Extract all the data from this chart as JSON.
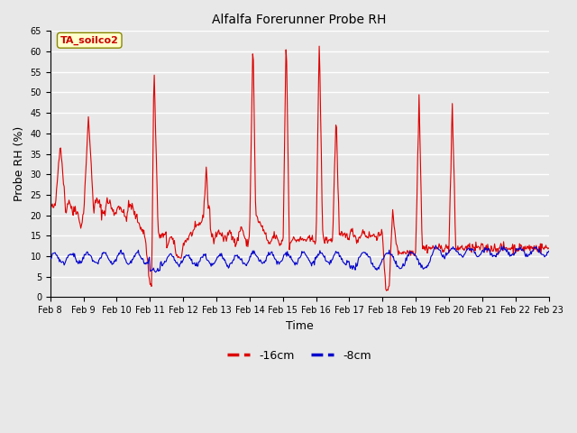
{
  "title": "Alfalfa Forerunner Probe RH",
  "xlabel": "Time",
  "ylabel": "Probe RH (%)",
  "ylim": [
    0,
    65
  ],
  "yticks": [
    0,
    5,
    10,
    15,
    20,
    25,
    30,
    35,
    40,
    45,
    50,
    55,
    60,
    65
  ],
  "date_labels": [
    "Feb 8",
    "Feb 9",
    "Feb 10",
    "Feb 11",
    "Feb 12",
    "Feb 13",
    "Feb 14",
    "Feb 15",
    "Feb 16",
    "Feb 17",
    "Feb 18",
    "Feb 19",
    "Feb 20",
    "Feb 21",
    "Feb 22",
    "Feb 23"
  ],
  "annotation": "TA_soilco2",
  "annotation_color": "#cc0000",
  "annotation_bg": "#ffffcc",
  "annotation_border": "#888800",
  "line_16cm_color": "#dd0000",
  "line_8cm_color": "#0000cc",
  "background_color": "#e8e8e8",
  "grid_color": "#ffffff",
  "legend_16cm": "-16cm",
  "legend_8cm": "-8cm",
  "fig_width": 6.4,
  "fig_height": 4.8,
  "dpi": 100
}
